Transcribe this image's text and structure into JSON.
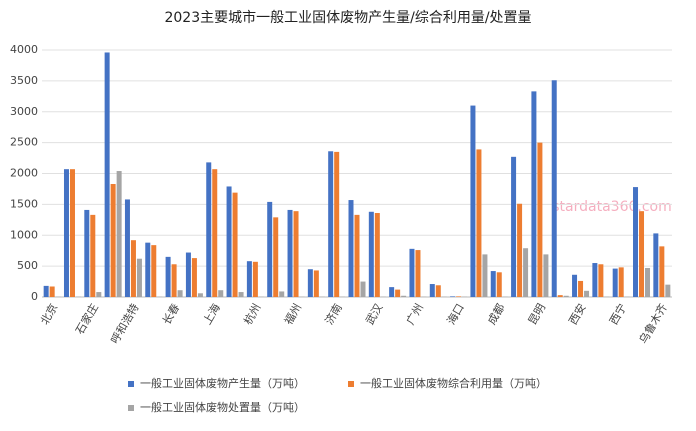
{
  "chart_data": {
    "type": "bar",
    "title": "2023主要城市一般工业固体废物产生量/综合利用量/处置量",
    "annotation": "stardata360.com",
    "categories": [
      "北京",
      null,
      "石家庄",
      null,
      "呼和浩特",
      null,
      "长春",
      null,
      "上海",
      null,
      "杭州",
      null,
      "福州",
      null,
      "济南",
      null,
      "武汉",
      null,
      "广州",
      null,
      "海口",
      null,
      "成都",
      null,
      "昆明",
      null,
      "西安",
      null,
      "西宁",
      null,
      "乌鲁木齐"
    ],
    "series": [
      {
        "name": "一般工业固体废物产生量（万吨）",
        "color": "#4472c4",
        "values": [
          180,
          2070,
          1410,
          3960,
          1580,
          880,
          650,
          720,
          2180,
          1790,
          580,
          1540,
          1410,
          450,
          2360,
          1570,
          1380,
          160,
          780,
          210,
          10,
          3100,
          420,
          2270,
          3330,
          3510,
          360,
          550,
          460,
          1780,
          1030
        ]
      },
      {
        "name": "一般工业固体废物综合利用量（万吨）",
        "color": "#ed7d31",
        "values": [
          170,
          2070,
          1330,
          1830,
          920,
          840,
          530,
          630,
          2070,
          1690,
          570,
          1290,
          1390,
          430,
          2350,
          1330,
          1360,
          120,
          760,
          190,
          10,
          2390,
          400,
          1510,
          2500,
          30,
          260,
          530,
          480,
          1390,
          820
        ]
      },
      {
        "name": "一般工业固体废物处置量（万吨）",
        "color": "#a5a5a5",
        "values": [
          5,
          5,
          80,
          2040,
          620,
          5,
          110,
          60,
          110,
          80,
          5,
          90,
          5,
          5,
          5,
          250,
          5,
          20,
          5,
          5,
          5,
          690,
          5,
          790,
          690,
          20,
          100,
          5,
          5,
          470,
          200
        ]
      }
    ],
    "ylim": [
      0,
      4000
    ],
    "yticks": [
      0,
      500,
      1000,
      1500,
      2000,
      2500,
      3000,
      3500,
      4000
    ],
    "grid": true
  }
}
